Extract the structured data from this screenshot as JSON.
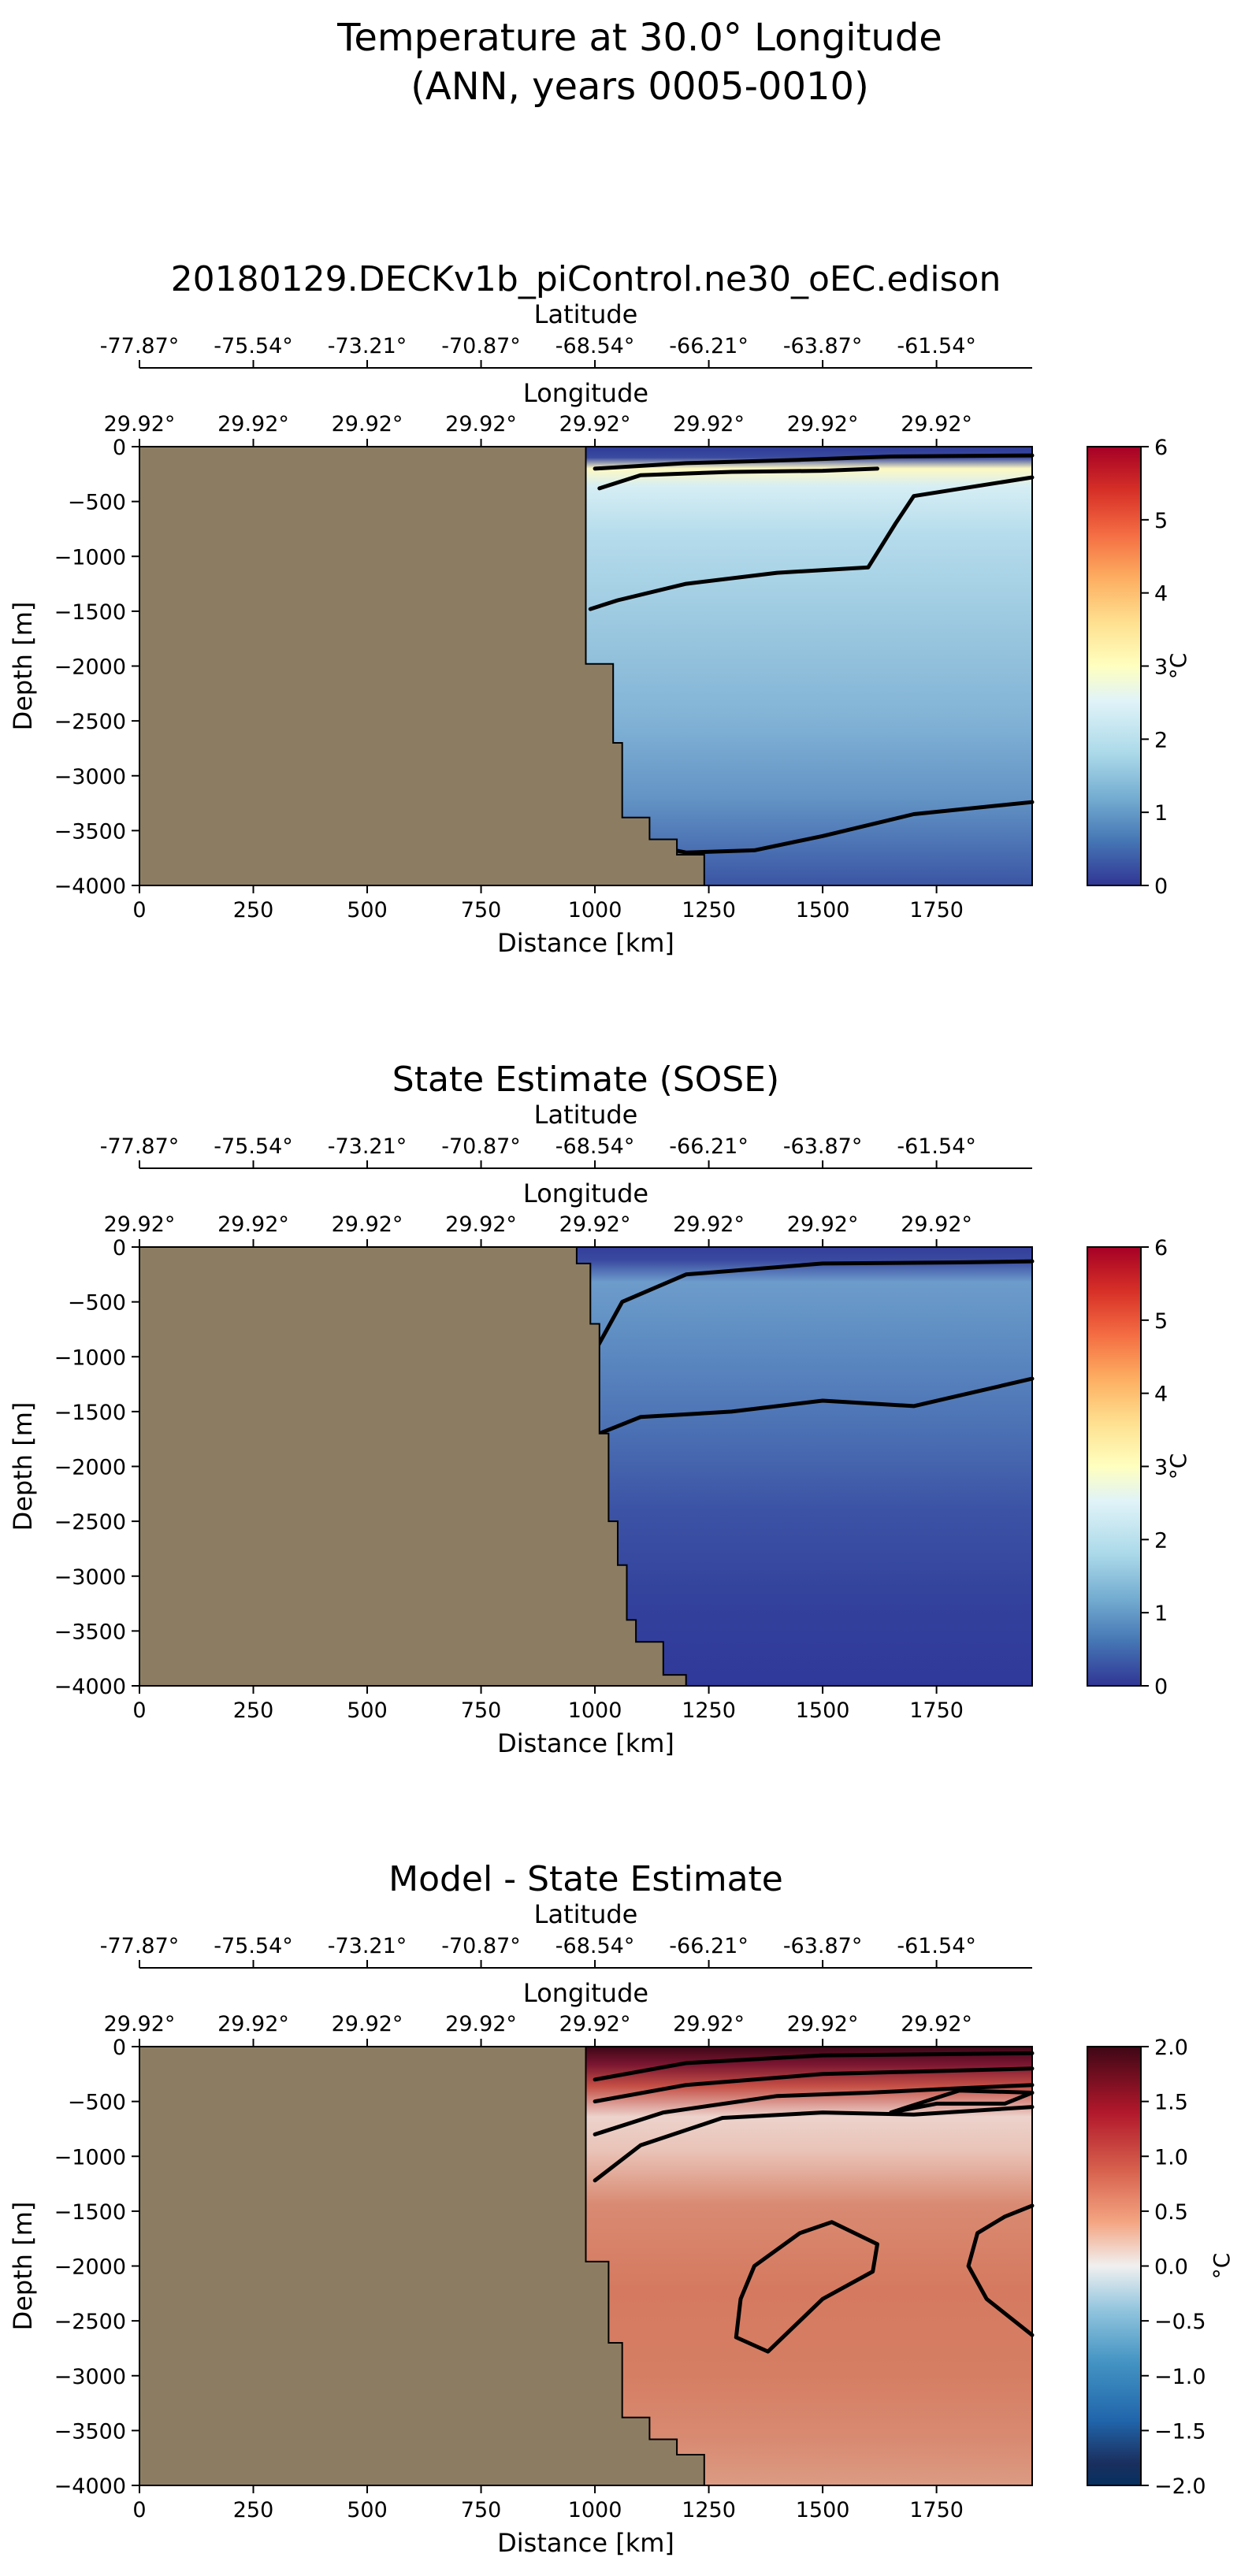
{
  "figure": {
    "title_line1": "Temperature at 30.0° Longitude",
    "title_line2": "(ANN, years 0005-0010)"
  },
  "colors": {
    "land": "#8c7d62",
    "div_cold_dark": "#131d3b",
    "div_warm_dark": "#3e0716"
  },
  "chart_data": [
    {
      "type": "heatmap",
      "title": "20180129.DECKv1b_piControl.ne30_oEC.edison",
      "xlabel": "Distance [km]",
      "ylabel": "Depth [m]",
      "top_axis1_label": "Latitude",
      "top_axis2_label": "Longitude",
      "xlim": [
        0,
        1960
      ],
      "ylim": [
        -4000,
        0
      ],
      "xticks": [
        0,
        250,
        500,
        750,
        1000,
        1250,
        1500,
        1750
      ],
      "yticks": [
        0,
        -500,
        -1000,
        -1500,
        -2000,
        -2500,
        -3000,
        -3500,
        -4000
      ],
      "lat_ticks": [
        "-77.87°",
        "-75.54°",
        "-73.21°",
        "-70.87°",
        "-68.54°",
        "-66.21°",
        "-63.87°",
        "-61.54°"
      ],
      "lon_ticks": [
        "29.92°",
        "29.92°",
        "29.92°",
        "29.92°",
        "29.92°",
        "29.92°",
        "29.92°",
        "29.92°"
      ],
      "colorbar": {
        "label": "°C",
        "min": 0,
        "max": 6,
        "ticks": [
          "0",
          "1",
          "2",
          "3",
          "4",
          "5",
          "6"
        ],
        "cmap": "RdYlBu_r"
      },
      "land_boundary": [
        [
          980,
          0
        ],
        [
          980,
          -1980
        ],
        [
          1040,
          -1980
        ],
        [
          1040,
          -2700
        ],
        [
          1060,
          -2700
        ],
        [
          1060,
          -3380
        ],
        [
          1120,
          -3380
        ],
        [
          1120,
          -3580
        ],
        [
          1180,
          -3580
        ],
        [
          1180,
          -3720
        ],
        [
          1240,
          -3720
        ],
        [
          1240,
          -4000
        ]
      ],
      "field_samples": [
        {
          "x": 1300,
          "y": -150,
          "value": 3.0
        },
        {
          "x": 1500,
          "y": -700,
          "value": 1.5
        },
        {
          "x": 1500,
          "y": -2000,
          "value": 1.1
        },
        {
          "x": 1500,
          "y": -3500,
          "value": 0.5
        }
      ],
      "contours": [
        [
          [
            1000,
            -200
          ],
          [
            1200,
            -150
          ],
          [
            1450,
            -120
          ],
          [
            1650,
            -90
          ],
          [
            1960,
            -80
          ]
        ],
        [
          [
            1010,
            -380
          ],
          [
            1100,
            -260
          ],
          [
            1300,
            -230
          ],
          [
            1500,
            -220
          ],
          [
            1620,
            -200
          ]
        ],
        [
          [
            990,
            -1480
          ],
          [
            1050,
            -1400
          ],
          [
            1200,
            -1250
          ],
          [
            1400,
            -1150
          ],
          [
            1600,
            -1100
          ],
          [
            1660,
            -700
          ],
          [
            1700,
            -450
          ],
          [
            1960,
            -280
          ]
        ],
        [
          [
            1140,
            -3650
          ],
          [
            1200,
            -3700
          ],
          [
            1350,
            -3680
          ],
          [
            1500,
            -3550
          ],
          [
            1700,
            -3350
          ],
          [
            1960,
            -3240
          ]
        ]
      ]
    },
    {
      "type": "heatmap",
      "title": "State Estimate (SOSE)",
      "xlabel": "Distance [km]",
      "ylabel": "Depth [m]",
      "top_axis1_label": "Latitude",
      "top_axis2_label": "Longitude",
      "xlim": [
        0,
        1960
      ],
      "ylim": [
        -4000,
        0
      ],
      "xticks": [
        0,
        250,
        500,
        750,
        1000,
        1250,
        1500,
        1750
      ],
      "yticks": [
        0,
        -500,
        -1000,
        -1500,
        -2000,
        -2500,
        -3000,
        -3500,
        -4000
      ],
      "lat_ticks": [
        "-77.87°",
        "-75.54°",
        "-73.21°",
        "-70.87°",
        "-68.54°",
        "-66.21°",
        "-63.87°",
        "-61.54°"
      ],
      "lon_ticks": [
        "29.92°",
        "29.92°",
        "29.92°",
        "29.92°",
        "29.92°",
        "29.92°",
        "29.92°",
        "29.92°"
      ],
      "colorbar": {
        "label": "°C",
        "min": 0,
        "max": 6,
        "ticks": [
          "0",
          "1",
          "2",
          "3",
          "4",
          "5",
          "6"
        ],
        "cmap": "RdYlBu_r"
      },
      "land_boundary": [
        [
          960,
          0
        ],
        [
          960,
          -150
        ],
        [
          990,
          -150
        ],
        [
          990,
          -700
        ],
        [
          1010,
          -700
        ],
        [
          1010,
          -1700
        ],
        [
          1030,
          -1700
        ],
        [
          1030,
          -2500
        ],
        [
          1050,
          -2500
        ],
        [
          1050,
          -2900
        ],
        [
          1070,
          -2900
        ],
        [
          1070,
          -3400
        ],
        [
          1090,
          -3400
        ],
        [
          1090,
          -3600
        ],
        [
          1150,
          -3600
        ],
        [
          1150,
          -3900
        ],
        [
          1200,
          -3900
        ],
        [
          1200,
          -4000
        ]
      ],
      "field_samples": [
        {
          "x": 1500,
          "y": -400,
          "value": 1.2
        },
        {
          "x": 1500,
          "y": -1200,
          "value": 0.9
        },
        {
          "x": 1500,
          "y": -2200,
          "value": 0.5
        },
        {
          "x": 1500,
          "y": -3500,
          "value": 0.2
        }
      ],
      "contours": [
        [
          [
            1000,
            -950
          ],
          [
            1060,
            -500
          ],
          [
            1200,
            -250
          ],
          [
            1500,
            -150
          ],
          [
            1800,
            -140
          ],
          [
            1960,
            -130
          ]
        ],
        [
          [
            1010,
            -1700
          ],
          [
            1100,
            -1550
          ],
          [
            1300,
            -1500
          ],
          [
            1500,
            -1400
          ],
          [
            1700,
            -1450
          ],
          [
            1960,
            -1200
          ]
        ]
      ]
    },
    {
      "type": "heatmap",
      "title": "Model - State Estimate",
      "xlabel": "Distance [km]",
      "ylabel": "Depth [m]",
      "top_axis1_label": "Latitude",
      "top_axis2_label": "Longitude",
      "xlim": [
        0,
        1960
      ],
      "ylim": [
        -4000,
        0
      ],
      "xticks": [
        0,
        250,
        500,
        750,
        1000,
        1250,
        1500,
        1750
      ],
      "yticks": [
        0,
        -500,
        -1000,
        -1500,
        -2000,
        -2500,
        -3000,
        -3500,
        -4000
      ],
      "lat_ticks": [
        "-77.87°",
        "-75.54°",
        "-73.21°",
        "-70.87°",
        "-68.54°",
        "-66.21°",
        "-63.87°",
        "-61.54°"
      ],
      "lon_ticks": [
        "29.92°",
        "29.92°",
        "29.92°",
        "29.92°",
        "29.92°",
        "29.92°",
        "29.92°",
        "29.92°"
      ],
      "colorbar": {
        "label": "°C",
        "min": -2,
        "max": 2,
        "ticks": [
          "2.0",
          "1.5",
          "1.0",
          "0.5",
          "0.0",
          "−0.5",
          "−1.0",
          "−1.5",
          "−2.0"
        ],
        "cmap": "RdBu_r"
      },
      "land_boundary": [
        [
          980,
          0
        ],
        [
          980,
          -1960
        ],
        [
          1030,
          -1960
        ],
        [
          1030,
          -2700
        ],
        [
          1060,
          -2700
        ],
        [
          1060,
          -3380
        ],
        [
          1120,
          -3380
        ],
        [
          1120,
          -3580
        ],
        [
          1180,
          -3580
        ],
        [
          1180,
          -3720
        ],
        [
          1240,
          -3720
        ],
        [
          1240,
          -4000
        ]
      ],
      "field_samples": [
        {
          "x": 1000,
          "y": -200,
          "value": 1.9
        },
        {
          "x": 1700,
          "y": -500,
          "value": 0.0
        },
        {
          "x": 1500,
          "y": -2000,
          "value": 1.1
        },
        {
          "x": 1500,
          "y": -3800,
          "value": 0.9
        }
      ],
      "contours": [
        [
          [
            1000,
            -300
          ],
          [
            1200,
            -150
          ],
          [
            1500,
            -80
          ],
          [
            1960,
            -60
          ]
        ],
        [
          [
            1000,
            -500
          ],
          [
            1200,
            -350
          ],
          [
            1500,
            -250
          ],
          [
            1960,
            -200
          ]
        ],
        [
          [
            1000,
            -800
          ],
          [
            1150,
            -600
          ],
          [
            1400,
            -450
          ],
          [
            1600,
            -420
          ],
          [
            1800,
            -380
          ],
          [
            1960,
            -350
          ]
        ],
        [
          [
            1000,
            -1220
          ],
          [
            1100,
            -900
          ],
          [
            1280,
            -650
          ],
          [
            1500,
            -600
          ],
          [
            1700,
            -620
          ],
          [
            1960,
            -550
          ]
        ],
        [
          [
            1650,
            -600
          ],
          [
            1800,
            -400
          ],
          [
            1960,
            -420
          ],
          [
            1900,
            -520
          ],
          [
            1750,
            -520
          ],
          [
            1650,
            -600
          ]
        ],
        [
          [
            1350,
            -2000
          ],
          [
            1450,
            -1700
          ],
          [
            1520,
            -1600
          ],
          [
            1620,
            -1800
          ],
          [
            1610,
            -2050
          ],
          [
            1500,
            -2300
          ],
          [
            1380,
            -2780
          ],
          [
            1310,
            -2650
          ],
          [
            1320,
            -2300
          ],
          [
            1350,
            -2000
          ]
        ],
        [
          [
            1960,
            -1450
          ],
          [
            1900,
            -1550
          ],
          [
            1840,
            -1700
          ],
          [
            1820,
            -2000
          ],
          [
            1860,
            -2300
          ],
          [
            1960,
            -2630
          ]
        ]
      ]
    }
  ]
}
